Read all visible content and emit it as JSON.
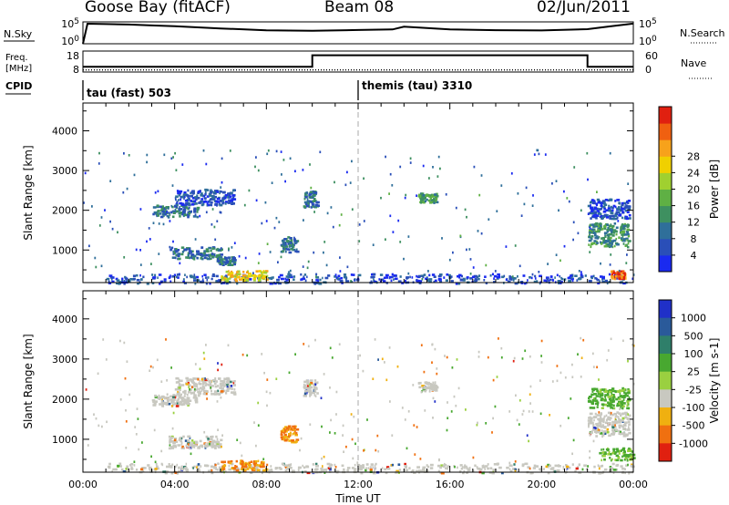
{
  "header": {
    "station": "Goose Bay (fitACF)",
    "beam": "Beam 08",
    "date": "02/Jun/2011"
  },
  "summary": {
    "nsky_label": "N.Sky",
    "nsearch_label": "N.Search",
    "freq_label_1": "Freq.",
    "freq_label_2": "[MHz]",
    "nave_label": "Nave",
    "cpid_label": "CPID",
    "noise_ticks": [
      "10^5",
      "10^0"
    ],
    "noise_ticks_right": [
      "10^5",
      "10^0"
    ],
    "freq_ticks": [
      "18",
      "8"
    ],
    "nave_ticks": [
      "60",
      "0"
    ],
    "cpid_1": "tau (fast) 503",
    "cpid_2": "themis (tau) 3310"
  },
  "chart_data": [
    {
      "type": "line",
      "title": "",
      "xlabel": "",
      "ylabel": "N.Sky",
      "ylabel_right": "N.Search",
      "ylim": [
        1,
        100000
      ],
      "scale": "log",
      "x": [
        0,
        0.2,
        1,
        2,
        3,
        4,
        6,
        8,
        10,
        12,
        13.5,
        14,
        16,
        18,
        20,
        22,
        23,
        24
      ],
      "series": [
        {
          "name": "N.Sky",
          "values": [
            1,
            50000,
            40000,
            25000,
            12000,
            8000,
            3000,
            1500,
            1200,
            1500,
            1500,
            6000,
            1800,
            1500,
            1500,
            2500,
            8000,
            30000
          ]
        }
      ]
    },
    {
      "type": "line",
      "title": "",
      "xlabel": "",
      "ylabel": "Freq. [MHz]",
      "ylabel_right": "Nave",
      "ylim": [
        8,
        18
      ],
      "ylim_right": [
        0,
        60
      ],
      "x": [
        0,
        10,
        10,
        22,
        22,
        24
      ],
      "series": [
        {
          "name": "Freq.",
          "values": [
            10.5,
            10.5,
            16.0,
            16.0,
            10.5,
            10.5
          ]
        },
        {
          "name": "Nave",
          "values": [
            6,
            6,
            6,
            6,
            6,
            6
          ]
        }
      ]
    },
    {
      "type": "heatmap",
      "title": "",
      "xlabel": "Time UT",
      "ylabel": "Slant Range [km]",
      "xlim": [
        0,
        24
      ],
      "ylim": [
        180,
        4700
      ],
      "xticks": [
        "00:00",
        "04:00",
        "08:00",
        "12:00",
        "16:00",
        "20:00",
        "00:00"
      ],
      "yticks": [
        "1000",
        "2000",
        "3000",
        "4000"
      ],
      "colorbar_label": "Power [dB]",
      "colorbar_ticks": [
        "4",
        "8",
        "12",
        "16",
        "20",
        "24",
        "28"
      ],
      "colorbar_colors": [
        "#1a2af0",
        "#2a4fb8",
        "#2f6f9a",
        "#3e9060",
        "#5fb044",
        "#a0d030",
        "#f0d000",
        "#f7a21b",
        "#f06010",
        "#e02010"
      ],
      "echo_regions": [
        {
          "t0": 3.0,
          "t1": 5.0,
          "r0": 1850,
          "r1": 2150,
          "level": 8
        },
        {
          "t0": 4.0,
          "t1": 6.6,
          "r0": 2150,
          "r1": 2550,
          "level": 6
        },
        {
          "t0": 3.7,
          "t1": 6.0,
          "r0": 800,
          "r1": 1100,
          "level": 10
        },
        {
          "t0": 5.8,
          "t1": 6.6,
          "r0": 650,
          "r1": 850,
          "level": 10
        },
        {
          "t0": 8.6,
          "t1": 9.3,
          "r0": 950,
          "r1": 1350,
          "level": 10
        },
        {
          "t0": 9.6,
          "t1": 10.2,
          "r0": 2100,
          "r1": 2500,
          "level": 10
        },
        {
          "t0": 14.6,
          "t1": 15.4,
          "r0": 2200,
          "r1": 2450,
          "level": 12
        },
        {
          "t0": 22.0,
          "t1": 23.8,
          "r0": 1100,
          "r1": 1700,
          "level": 12
        },
        {
          "t0": 22.0,
          "t1": 23.8,
          "r0": 1800,
          "r1": 2300,
          "level": 6
        },
        {
          "t0": 1.0,
          "t1": 24.0,
          "r0": 180,
          "r1": 420,
          "level": 6
        },
        {
          "t0": 6.0,
          "t1": 8.0,
          "r0": 250,
          "r1": 500,
          "level": 22
        },
        {
          "t0": 23.0,
          "t1": 23.6,
          "r0": 300,
          "r1": 500,
          "level": 28
        }
      ]
    },
    {
      "type": "heatmap",
      "title": "",
      "xlabel": "Time UT",
      "ylabel": "Slant Range [km]",
      "xlim": [
        0,
        24
      ],
      "ylim": [
        180,
        4700
      ],
      "xticks": [
        "00:00",
        "04:00",
        "08:00",
        "12:00",
        "16:00",
        "20:00",
        "00:00"
      ],
      "yticks": [
        "1000",
        "2000",
        "3000",
        "4000"
      ],
      "colorbar_label": "Velocity [m s-1]",
      "colorbar_ticks": [
        "1000",
        "500",
        "100",
        "25",
        "-25",
        "-100",
        "-500",
        "-1000"
      ],
      "colorbar_colors": [
        "#2030c8",
        "#2a5a9a",
        "#2f7f6a",
        "#48a830",
        "#9ad040",
        "#c8c8c0",
        "#f0b010",
        "#f07010",
        "#e02010"
      ],
      "echo_regions": [
        {
          "t0": 3.0,
          "t1": 5.0,
          "r0": 1850,
          "r1": 2150,
          "value": 0
        },
        {
          "t0": 4.0,
          "t1": 6.6,
          "r0": 2150,
          "r1": 2550,
          "value": 0
        },
        {
          "t0": 3.7,
          "t1": 6.0,
          "r0": 800,
          "r1": 1100,
          "value": 0
        },
        {
          "t0": 8.6,
          "t1": 9.3,
          "r0": 950,
          "r1": 1350,
          "value": -400
        },
        {
          "t0": 9.6,
          "t1": 10.2,
          "r0": 2100,
          "r1": 2500,
          "value": 0
        },
        {
          "t0": 14.6,
          "t1": 15.4,
          "r0": 2200,
          "r1": 2450,
          "value": 0
        },
        {
          "t0": 22.0,
          "t1": 23.8,
          "r0": 1100,
          "r1": 1700,
          "value": 0
        },
        {
          "t0": 22.0,
          "t1": 23.8,
          "r0": 1800,
          "r1": 2300,
          "value": 40
        },
        {
          "t0": 1.0,
          "t1": 24.0,
          "r0": 180,
          "r1": 420,
          "value": 0
        },
        {
          "t0": 6.0,
          "t1": 8.0,
          "r0": 250,
          "r1": 500,
          "value": -200
        },
        {
          "t0": 22.5,
          "t1": 24.0,
          "r0": 500,
          "r1": 800,
          "value": 60
        }
      ]
    }
  ]
}
